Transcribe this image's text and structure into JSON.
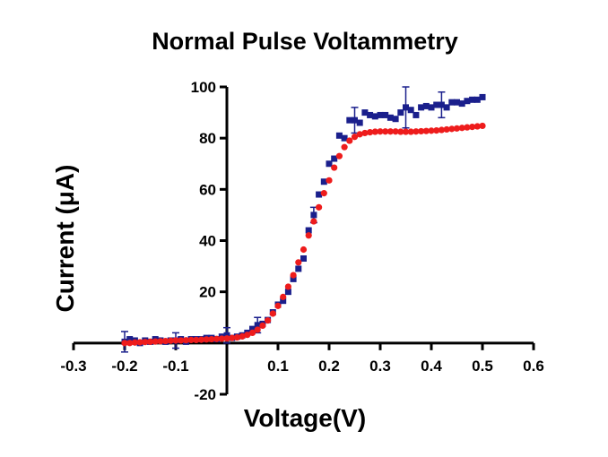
{
  "chart_data": {
    "type": "scatter",
    "title": "Normal Pulse Voltammetry",
    "xlabel": "Voltage(V)",
    "ylabel": "Current (μA)",
    "xlim": [
      -0.3,
      0.6
    ],
    "ylim": [
      -20,
      100
    ],
    "x_ticks": [
      "-0.3",
      "-0.2",
      "-0.1",
      "0.1",
      "0.2",
      "0.3",
      "0.4",
      "0.5",
      "0.6"
    ],
    "y_ticks": [
      "-20",
      "20",
      "40",
      "60",
      "80",
      "100"
    ],
    "grid": false,
    "legend": "none",
    "series": [
      {
        "marker": "square",
        "color": "#1a1f8c",
        "x": [
          -0.2,
          -0.19,
          -0.18,
          -0.17,
          -0.16,
          -0.15,
          -0.14,
          -0.13,
          -0.12,
          -0.11,
          -0.1,
          -0.09,
          -0.08,
          -0.07,
          -0.06,
          -0.05,
          -0.04,
          -0.03,
          -0.02,
          -0.01,
          0.0,
          0.01,
          0.02,
          0.03,
          0.04,
          0.05,
          0.06,
          0.07,
          0.08,
          0.09,
          0.1,
          0.11,
          0.12,
          0.13,
          0.14,
          0.15,
          0.16,
          0.17,
          0.18,
          0.19,
          0.2,
          0.21,
          0.22,
          0.23,
          0.24,
          0.25,
          0.26,
          0.27,
          0.28,
          0.29,
          0.3,
          0.31,
          0.32,
          0.33,
          0.34,
          0.35,
          0.36,
          0.37,
          0.38,
          0.39,
          0.4,
          0.41,
          0.42,
          0.43,
          0.44,
          0.45,
          0.46,
          0.47,
          0.48,
          0.49,
          0.5
        ],
        "y": [
          0.5,
          1.5,
          1.0,
          0.0,
          1.0,
          0.5,
          1.5,
          1.0,
          0.5,
          1.0,
          1.0,
          1.5,
          0.5,
          1.5,
          1.5,
          1.5,
          2.0,
          2.0,
          1.5,
          2.5,
          3.0,
          2.0,
          2.5,
          3.0,
          4.0,
          5.5,
          7.0,
          7.5,
          9.0,
          12.0,
          15.0,
          16.5,
          20.0,
          25.0,
          29.0,
          33.0,
          44.0,
          50.0,
          58.0,
          63.0,
          70.0,
          72.0,
          81.0,
          80.0,
          87.0,
          87.0,
          86.0,
          90.0,
          89.0,
          88.5,
          89.0,
          89.0,
          88.0,
          87.5,
          90.0,
          92.0,
          91.0,
          89.0,
          92.0,
          92.5,
          92.0,
          93.0,
          93.0,
          92.0,
          94.0,
          94.0,
          93.5,
          94.5,
          95.0,
          95.0,
          96.0
        ],
        "error_x": [
          -0.2,
          -0.1,
          0.0,
          0.06,
          0.17,
          0.25,
          0.35,
          0.42
        ],
        "error_y": [
          4,
          3,
          3,
          3,
          3,
          5,
          8,
          5
        ]
      },
      {
        "marker": "circle",
        "color": "#ee1c1c",
        "x": [
          -0.2,
          -0.19,
          -0.18,
          -0.17,
          -0.16,
          -0.15,
          -0.14,
          -0.13,
          -0.12,
          -0.11,
          -0.1,
          -0.09,
          -0.08,
          -0.07,
          -0.06,
          -0.05,
          -0.04,
          -0.03,
          -0.02,
          -0.01,
          0.0,
          0.01,
          0.02,
          0.03,
          0.04,
          0.05,
          0.06,
          0.07,
          0.08,
          0.09,
          0.1,
          0.11,
          0.12,
          0.13,
          0.14,
          0.15,
          0.16,
          0.17,
          0.18,
          0.19,
          0.2,
          0.21,
          0.22,
          0.23,
          0.24,
          0.25,
          0.26,
          0.27,
          0.28,
          0.29,
          0.3,
          0.31,
          0.32,
          0.33,
          0.34,
          0.35,
          0.36,
          0.37,
          0.38,
          0.39,
          0.4,
          0.41,
          0.42,
          0.43,
          0.44,
          0.45,
          0.46,
          0.47,
          0.48,
          0.49,
          0.5
        ],
        "y": [
          0.0,
          0.0,
          0.2,
          0.3,
          0.4,
          0.5,
          0.6,
          0.7,
          0.8,
          0.9,
          1.0,
          1.0,
          1.1,
          1.2,
          1.2,
          1.3,
          1.4,
          1.5,
          1.6,
          1.7,
          1.8,
          2.0,
          2.2,
          2.6,
          3.2,
          4.0,
          5.2,
          6.8,
          8.8,
          11.5,
          14.5,
          18.0,
          22.0,
          26.5,
          31.5,
          36.5,
          42.0,
          47.5,
          53.0,
          58.5,
          63.5,
          68.5,
          73.0,
          76.5,
          79.0,
          80.5,
          81.5,
          82.0,
          82.3,
          82.5,
          82.6,
          82.6,
          82.6,
          82.6,
          82.5,
          82.5,
          82.5,
          82.6,
          82.7,
          82.8,
          82.9,
          83.0,
          83.2,
          83.4,
          83.6,
          83.8,
          84.0,
          84.2,
          84.4,
          84.6,
          84.8
        ]
      }
    ]
  }
}
